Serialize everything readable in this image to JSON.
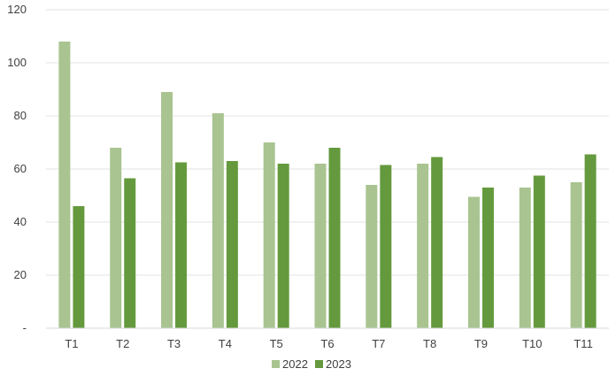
{
  "chart_data": {
    "type": "bar",
    "categories": [
      "T1",
      "T2",
      "T3",
      "T4",
      "T5",
      "T6",
      "T7",
      "T8",
      "T9",
      "T10",
      "T11"
    ],
    "series": [
      {
        "name": "2022",
        "color": "#a9c490",
        "values": [
          108,
          68,
          89,
          81,
          70,
          62,
          54,
          62,
          49.5,
          53,
          55
        ]
      },
      {
        "name": "2023",
        "color": "#649a3d",
        "values": [
          46,
          56.5,
          62.5,
          63,
          62,
          68,
          61.5,
          64.5,
          53,
          57.5,
          65.5
        ]
      }
    ],
    "ylim": [
      0,
      120
    ],
    "yticks": [
      0,
      20,
      40,
      60,
      80,
      100,
      120
    ],
    "ytick_labels": [
      "-",
      "20",
      "40",
      "60",
      "80",
      "100",
      "120"
    ],
    "grid": true,
    "legend_position": "bottom-center"
  }
}
